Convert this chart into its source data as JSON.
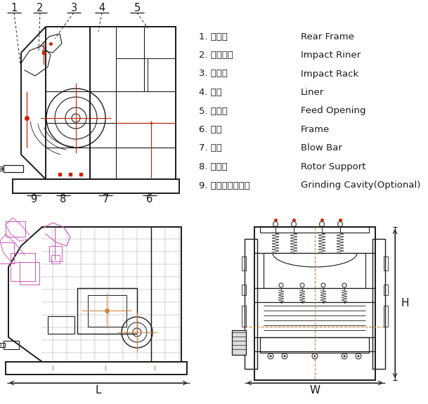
{
  "background_color": "#ffffff",
  "mc": "#1a1a1a",
  "rc": "#cc2200",
  "mgc": "#cc55bb",
  "oc": "#cc8844",
  "legend_items": [
    {
      "num": "1",
      "chinese": "后箱体",
      "english": "Rear Frame"
    },
    {
      "num": "2",
      "chinese": "反击衬板",
      "english": "Impact Riner"
    },
    {
      "num": "3",
      "chinese": "反击架",
      "english": "Impact Rack"
    },
    {
      "num": "4",
      "chinese": "衬板",
      "english": "Liner"
    },
    {
      "num": "5",
      "chinese": "进料口",
      "english": "Feed Opening"
    },
    {
      "num": "6",
      "chinese": "底座",
      "english": "Frame"
    },
    {
      "num": "7",
      "chinese": "板锤",
      "english": "Blow Bar"
    },
    {
      "num": "8",
      "chinese": "转子架",
      "english": "Rotor Support"
    },
    {
      "num": "9",
      "chinese": "研磨腔（选装）",
      "english": "Grinding Cavity(Optional)"
    }
  ]
}
